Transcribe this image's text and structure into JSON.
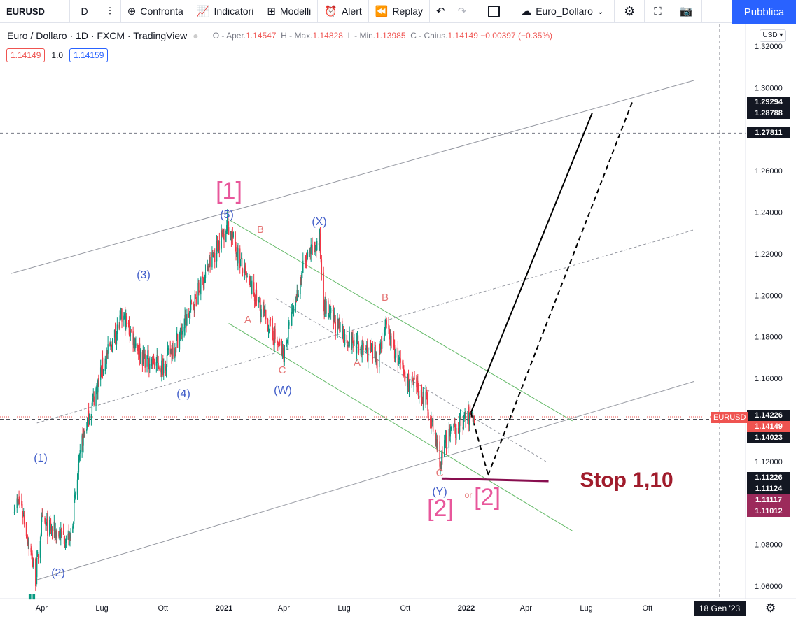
{
  "toolbar": {
    "symbol": "EURUSD",
    "interval": "D",
    "compare": "Confronta",
    "indicators": "Indicatori",
    "templates": "Modelli",
    "alert": "Alert",
    "replay": "Replay",
    "layout_name": "Euro_Dollaro",
    "publish": "Pubblica"
  },
  "legend": {
    "title": "Euro / Dollaro · 1D · FXCM · TradingView",
    "o_label": "O - Aper.",
    "o": "1.14547",
    "h_label": "H - Max.",
    "h": "1.14828",
    "l_label": "L - Min.",
    "l": "1.13985",
    "c_label": "C - Chius.",
    "c": "1.14149",
    "chg": "−0.00397 (−0.35%)",
    "bid": "1.14149",
    "qty": "1.0",
    "ask": "1.14159"
  },
  "price_axis": {
    "currency": "USD",
    "ticks": [
      "1.32000",
      "1.30000",
      "1.28000",
      "1.26000",
      "1.24000",
      "1.22000",
      "1.20000",
      "1.18000",
      "1.16000",
      "1.14000",
      "1.12000",
      "1.10000",
      "1.08000",
      "1.06000"
    ],
    "boxes": [
      {
        "label": "1.29294",
        "style": "dark",
        "value": 1.29294
      },
      {
        "label": "1.28788",
        "style": "dark",
        "value": 1.28788
      },
      {
        "label": "1.27811",
        "style": "dark",
        "value": 1.27811
      },
      {
        "label": "1.14226",
        "style": "dark",
        "value": 1.14226
      },
      {
        "label": "1.14149",
        "style": "red",
        "value": 1.14149
      },
      {
        "label": "1.14023",
        "style": "dark",
        "value": 1.14023
      },
      {
        "label": "1.11226",
        "style": "dark",
        "value": 1.11226
      },
      {
        "label": "1.11124",
        "style": "dark",
        "value": 1.11124
      },
      {
        "label": "1.11117",
        "style": "maroon",
        "value": 1.11117
      },
      {
        "label": "1.11012",
        "style": "maroon",
        "value": 1.11012
      }
    ],
    "symbol_tag": "EURUSD"
  },
  "time_axis": {
    "labels": [
      "Apr",
      "Lug",
      "Ott",
      "2021",
      "Apr",
      "Lug",
      "Ott",
      "2022",
      "Apr",
      "Lug",
      "Ott"
    ],
    "current_date": "18 Gen '23"
  },
  "chart_data": {
    "type": "line",
    "title": "Euro / Dollaro · 1D · FXCM",
    "ylim": [
      1.055,
      1.33
    ],
    "x": [
      "2020-03",
      "2020-03-23",
      "2020-04",
      "2020-05-14",
      "2020-06",
      "2020-07",
      "2020-08",
      "2020-09",
      "2020-10",
      "2020-11",
      "2021-01-06",
      "2021-02",
      "2021-03-31",
      "2021-05",
      "2021-05-25",
      "2021-06",
      "2021-07",
      "2021-08-20",
      "2021-09",
      "2021-10",
      "2021-11",
      "2021-11-24",
      "2021-12",
      "2022-01"
    ],
    "series": [
      {
        "values": [
          1.1,
          1.064,
          1.09,
          1.082,
          1.13,
          1.165,
          1.19,
          1.17,
          1.166,
          1.185,
          1.235,
          1.21,
          1.171,
          1.215,
          1.226,
          1.195,
          1.18,
          1.17,
          1.185,
          1.16,
          1.15,
          1.119,
          1.13,
          1.1415
        ]
      }
    ],
    "colors": {
      "up": "#089981",
      "down": "#f23645"
    }
  },
  "annotations": {
    "wave_1": "[1]",
    "wave_2": "[2]",
    "wave_2_alt": "[2]",
    "or": "or",
    "stop": "Stop 1,10",
    "sub5": "(5)",
    "sub3": "(3)",
    "sub4": "(4)",
    "sub1": "(1)",
    "sub2": "(2)",
    "subX": "(X)",
    "subW": "(W)",
    "subY": "(Y)",
    "a1": "A",
    "b1": "B",
    "c1": "C",
    "a2": "A",
    "b2": "B",
    "c2": "C"
  }
}
